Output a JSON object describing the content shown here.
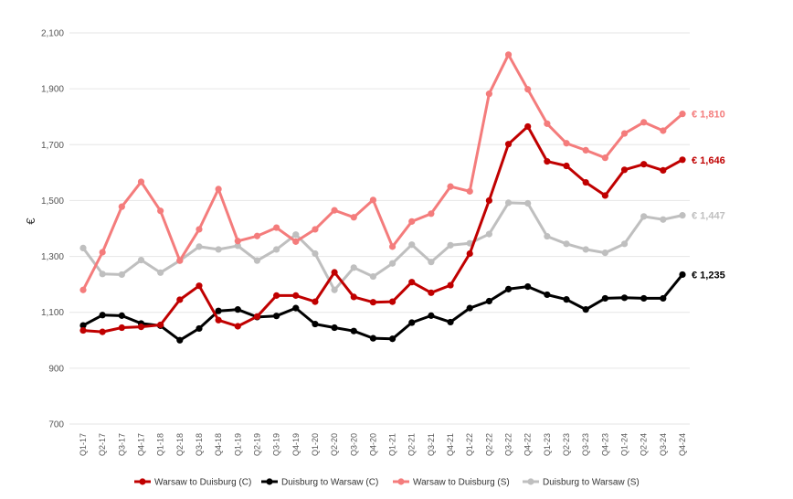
{
  "chart_data": {
    "type": "line",
    "title": "",
    "xlabel": "",
    "ylabel": "€",
    "ylim": [
      700,
      2100
    ],
    "yticks": [
      700,
      900,
      1100,
      1300,
      1500,
      1700,
      1900,
      2100
    ],
    "ytick_labels": [
      "700",
      "900",
      "1,100",
      "1,300",
      "1,500",
      "1,700",
      "1,900",
      "2,100"
    ],
    "grid": "horizontal",
    "legend_position": "bottom",
    "categories": [
      "Q1-17",
      "Q2-17",
      "Q3-17",
      "Q4-17",
      "Q1-18",
      "Q2-18",
      "Q3-18",
      "Q4-18",
      "Q1-19",
      "Q2-19",
      "Q3-19",
      "Q4-19",
      "Q1-20",
      "Q2-20",
      "Q3-20",
      "Q4-20",
      "Q1-21",
      "Q2-21",
      "Q3-21",
      "Q4-21",
      "Q1-22",
      "Q2-22",
      "Q3-22",
      "Q4-22",
      "Q1-23",
      "Q2-23",
      "Q3-23",
      "Q4-23",
      "Q1-24",
      "Q2-24",
      "Q3-24",
      "Q4-24"
    ],
    "series": [
      {
        "name": "Warsaw to Duisburg (C)",
        "color": "#c00000",
        "end_label": "€ 1,646",
        "values": [
          1035,
          1030,
          1045,
          1048,
          1055,
          1145,
          1195,
          1072,
          1050,
          1085,
          1160,
          1160,
          1138,
          1243,
          1155,
          1136,
          1138,
          1208,
          1170,
          1197,
          1310,
          1500,
          1702,
          1765,
          1640,
          1624,
          1565,
          1518,
          1610,
          1630,
          1608,
          1646
        ]
      },
      {
        "name": "Duisburg to Warsaw (C)",
        "color": "#000000",
        "end_label": "€ 1,235",
        "values": [
          1053,
          1090,
          1088,
          1060,
          1052,
          1000,
          1042,
          1105,
          1110,
          1083,
          1087,
          1115,
          1058,
          1045,
          1033,
          1007,
          1005,
          1063,
          1088,
          1065,
          1115,
          1140,
          1183,
          1192,
          1163,
          1146,
          1110,
          1150,
          1152,
          1150,
          1150,
          1235
        ]
      },
      {
        "name": "Warsaw to Duisburg (S)",
        "color": "#f47c7c",
        "end_label": "€ 1,810",
        "values": [
          1180,
          1315,
          1478,
          1567,
          1463,
          1285,
          1397,
          1541,
          1355,
          1373,
          1403,
          1353,
          1397,
          1465,
          1440,
          1502,
          1335,
          1425,
          1453,
          1550,
          1533,
          1882,
          2022,
          1898,
          1775,
          1705,
          1680,
          1653,
          1740,
          1780,
          1750,
          1810
        ]
      },
      {
        "name": "Duisburg to Warsaw (S)",
        "color": "#bfbfbf",
        "end_label": "€ 1,447",
        "values": [
          1330,
          1237,
          1235,
          1287,
          1242,
          1285,
          1335,
          1325,
          1338,
          1285,
          1325,
          1378,
          1310,
          1180,
          1260,
          1228,
          1275,
          1342,
          1280,
          1340,
          1347,
          1380,
          1492,
          1490,
          1372,
          1345,
          1325,
          1313,
          1345,
          1443,
          1432,
          1447
        ]
      }
    ]
  }
}
